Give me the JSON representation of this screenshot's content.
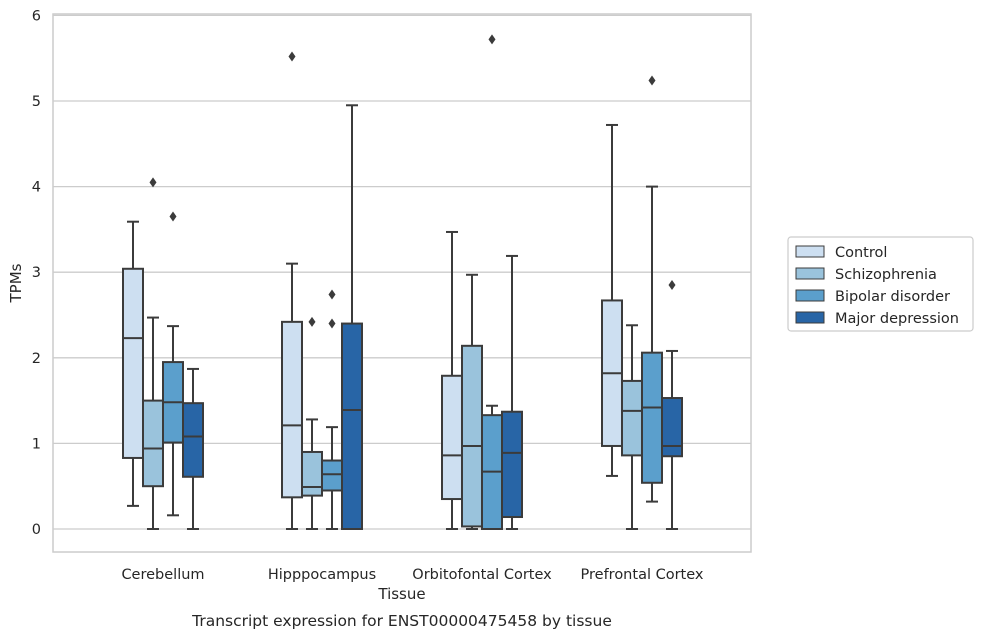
{
  "caption": "Transcript expression for ENST00000475458 by tissue",
  "chart_data": {
    "type": "box",
    "xlabel": "Tissue",
    "ylabel": "TPMs",
    "ylim": [
      -0.27,
      6.05
    ],
    "yticks": [
      0,
      1,
      2,
      3,
      4,
      5,
      6
    ],
    "grid": true,
    "legend_position": "right",
    "categories": [
      "Cerebellum",
      "Hipppocampus",
      "Orbitofontal Cortex",
      "Prefrontal Cortex"
    ],
    "series": [
      {
        "name": "Control",
        "color": "#cddff1",
        "boxes": [
          {
            "whislo": 0.27,
            "q1": 0.83,
            "med": 2.23,
            "q3": 3.04,
            "whishi": 3.59,
            "fliers": []
          },
          {
            "whislo": 0.0,
            "q1": 0.37,
            "med": 1.21,
            "q3": 2.42,
            "whishi": 3.1,
            "fliers": [
              5.52
            ]
          },
          {
            "whislo": 0.0,
            "q1": 0.35,
            "med": 0.86,
            "q3": 1.79,
            "whishi": 3.47,
            "fliers": []
          },
          {
            "whislo": 0.62,
            "q1": 0.97,
            "med": 1.82,
            "q3": 2.67,
            "whishi": 4.72,
            "fliers": []
          }
        ]
      },
      {
        "name": "Schizophrenia",
        "color": "#9ac3dc",
        "boxes": [
          {
            "whislo": 0.0,
            "q1": 0.5,
            "med": 0.94,
            "q3": 1.5,
            "whishi": 2.47,
            "fliers": [
              4.05
            ]
          },
          {
            "whislo": 0.0,
            "q1": 0.39,
            "med": 0.49,
            "q3": 0.9,
            "whishi": 1.28,
            "fliers": [
              2.42
            ]
          },
          {
            "whislo": 0.0,
            "q1": 0.03,
            "med": 0.97,
            "q3": 2.14,
            "whishi": 2.97,
            "fliers": []
          },
          {
            "whislo": 0.0,
            "q1": 0.86,
            "med": 1.38,
            "q3": 1.73,
            "whishi": 2.38,
            "fliers": []
          }
        ]
      },
      {
        "name": "Bipolar disorder",
        "color": "#5b9fcc",
        "boxes": [
          {
            "whislo": 0.16,
            "q1": 1.01,
            "med": 1.48,
            "q3": 1.95,
            "whishi": 2.37,
            "fliers": [
              3.65
            ]
          },
          {
            "whislo": 0.0,
            "q1": 0.45,
            "med": 0.64,
            "q3": 0.8,
            "whishi": 1.19,
            "fliers": [
              2.4,
              2.74
            ]
          },
          {
            "whislo": 0.0,
            "q1": 0.0,
            "med": 0.67,
            "q3": 1.33,
            "whishi": 1.44,
            "fliers": [
              5.72
            ]
          },
          {
            "whislo": 0.32,
            "q1": 0.54,
            "med": 1.42,
            "q3": 2.06,
            "whishi": 4.0,
            "fliers": [
              5.24
            ]
          }
        ]
      },
      {
        "name": "Major depression",
        "color": "#2865a6",
        "boxes": [
          {
            "whislo": 0.0,
            "q1": 0.61,
            "med": 1.08,
            "q3": 1.47,
            "whishi": 1.87,
            "fliers": []
          },
          {
            "whislo": 0.0,
            "q1": 0.0,
            "med": 1.39,
            "q3": 2.4,
            "whishi": 4.95,
            "fliers": []
          },
          {
            "whislo": 0.0,
            "q1": 0.14,
            "med": 0.89,
            "q3": 1.37,
            "whishi": 3.19,
            "fliers": []
          },
          {
            "whislo": 0.0,
            "q1": 0.85,
            "med": 0.97,
            "q3": 1.53,
            "whishi": 2.08,
            "fliers": [
              2.85
            ]
          }
        ]
      }
    ]
  }
}
